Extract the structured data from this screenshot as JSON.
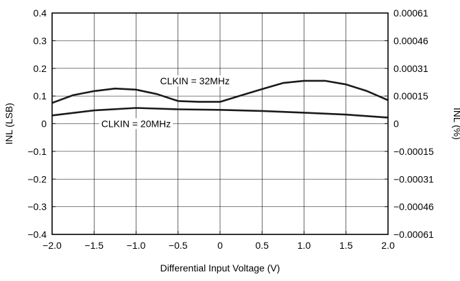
{
  "chart_data": {
    "type": "line",
    "title": "",
    "xlabel": "Differential Input Voltage (V)",
    "ylabel": "INL (LSB)",
    "y2label": "INL (%)",
    "xlim": [
      -2.0,
      2.0
    ],
    "ylim": [
      -0.4,
      0.4
    ],
    "x_ticks": [
      -2.0,
      -1.5,
      -1.0,
      -0.5,
      0,
      0.5,
      1.0,
      1.5,
      2.0
    ],
    "x_tick_labels": [
      "−2.0",
      "−1.5",
      "−1.0",
      "−0.5",
      "0",
      "0.5",
      "1.0",
      "1.5",
      "2.0"
    ],
    "y_ticks": [
      0.4,
      0.3,
      0.2,
      0.1,
      0,
      -0.1,
      -0.2,
      -0.3,
      -0.4
    ],
    "y_tick_labels": [
      "0.4",
      "0.3",
      "0.2",
      "0.1",
      "0",
      "−0.1",
      "−0.2",
      "−0.3",
      "−0.4"
    ],
    "y2_tick_labels": [
      "0.00061",
      "0.00046",
      "0.00031",
      "0.00015",
      "0",
      "−0.00015",
      "−0.00031",
      "−0.00046",
      "−0.00061"
    ],
    "grid": true,
    "line_color": "#1a1a1a",
    "grid_color": "#000000",
    "series": [
      {
        "name": "CLKIN = 32MHz",
        "x": [
          -2.0,
          -1.75,
          -1.5,
          -1.25,
          -1.0,
          -0.75,
          -0.5,
          -0.25,
          0,
          0.25,
          0.5,
          0.75,
          1.0,
          1.25,
          1.5,
          1.75,
          2.0
        ],
        "y": [
          0.075,
          0.103,
          0.118,
          0.127,
          0.123,
          0.107,
          0.082,
          0.079,
          0.079,
          0.102,
          0.125,
          0.147,
          0.155,
          0.155,
          0.142,
          0.118,
          0.085
        ],
        "label_x": -0.3,
        "label_y": 0.155
      },
      {
        "name": "CLKIN = 20MHz",
        "x": [
          -2.0,
          -1.5,
          -1.0,
          -0.5,
          0,
          0.5,
          1.0,
          1.5,
          2.0
        ],
        "y": [
          0.03,
          0.048,
          0.057,
          0.052,
          0.05,
          0.046,
          0.04,
          0.033,
          0.022
        ],
        "label_x": -1.0,
        "label_y": 0.0
      }
    ]
  }
}
